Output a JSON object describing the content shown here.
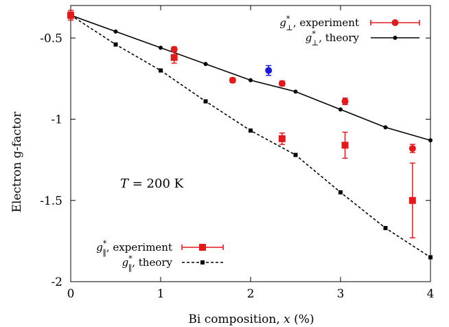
{
  "chart_data": {
    "type": "scatter",
    "xlabel": "Bi composition, x (%)",
    "ylabel": "Electron g-factor",
    "xlim": [
      0,
      4
    ],
    "ylim": [
      -2,
      -0.3
    ],
    "x_ticks": [
      0,
      1,
      2,
      3,
      4
    ],
    "x_tick_labels": [
      "0",
      "1",
      "2",
      "3",
      "4"
    ],
    "y_ticks": [
      -0.5,
      -1,
      -1.5,
      -2
    ],
    "y_tick_labels": [
      "-0.5",
      "-1",
      "-1.5",
      "-2"
    ],
    "annotation": "T = 200 K",
    "series": [
      {
        "name": "g⊥*, experiment",
        "kind": "points",
        "marker": "circle",
        "color": "#e31a1c",
        "points": [
          {
            "x": 0,
            "y": -0.36,
            "err": 0.03
          },
          {
            "x": 1.15,
            "y": -0.57,
            "err": 0.015
          },
          {
            "x": 1.8,
            "y": -0.76,
            "err": 0.015
          },
          {
            "x": 2.35,
            "y": -0.78,
            "err": 0.015
          },
          {
            "x": 3.05,
            "y": -0.89,
            "err": 0.02
          },
          {
            "x": 3.8,
            "y": -1.18,
            "err": 0.025
          }
        ]
      },
      {
        "name": "g⊥*, theory",
        "kind": "line",
        "marker": "circle",
        "color": "#000000",
        "dash": false,
        "points": [
          {
            "x": 0,
            "y": -0.36
          },
          {
            "x": 0.5,
            "y": -0.46
          },
          {
            "x": 1,
            "y": -0.56
          },
          {
            "x": 1.5,
            "y": -0.66
          },
          {
            "x": 2,
            "y": -0.76
          },
          {
            "x": 2.5,
            "y": -0.83
          },
          {
            "x": 3,
            "y": -0.94
          },
          {
            "x": 3.5,
            "y": -1.05
          },
          {
            "x": 4,
            "y": -1.13
          }
        ]
      },
      {
        "name": "",
        "kind": "points",
        "marker": "circle",
        "color": "#1a1adc",
        "points": [
          {
            "x": 2.2,
            "y": -0.7,
            "err": 0.03
          }
        ]
      },
      {
        "name": "g‖*, experiment",
        "kind": "points",
        "marker": "square",
        "color": "#e31a1c",
        "points": [
          {
            "x": 0,
            "y": -0.36,
            "err": 0.02
          },
          {
            "x": 1.15,
            "y": -0.62,
            "err": 0.035
          },
          {
            "x": 2.35,
            "y": -1.12,
            "err": 0.035
          },
          {
            "x": 3.05,
            "y": -1.16,
            "err": 0.08
          },
          {
            "x": 3.8,
            "y": -1.5,
            "err": 0.23
          }
        ]
      },
      {
        "name": "g‖*, theory",
        "kind": "line",
        "marker": "square",
        "color": "#000000",
        "dash": true,
        "points": [
          {
            "x": 0,
            "y": -0.36
          },
          {
            "x": 0.5,
            "y": -0.54
          },
          {
            "x": 1,
            "y": -0.7
          },
          {
            "x": 1.5,
            "y": -0.89
          },
          {
            "x": 2,
            "y": -1.07
          },
          {
            "x": 2.5,
            "y": -1.22
          },
          {
            "x": 3,
            "y": -1.45
          },
          {
            "x": 3.5,
            "y": -1.67
          },
          {
            "x": 4,
            "y": -1.85
          }
        ]
      }
    ],
    "legends": [
      {
        "placement": "top-right",
        "entries": [
          {
            "main": "g",
            "sup": "*",
            "sub": "⊥",
            "rest": ", experiment",
            "series": 0
          },
          {
            "main": "g",
            "sup": "*",
            "sub": "⊥",
            "rest": ", theory",
            "series": 1
          }
        ]
      },
      {
        "placement": "bottom-left",
        "entries": [
          {
            "main": "g",
            "sup": "*",
            "sub": "‖",
            "rest": ", experiment",
            "series": 3
          },
          {
            "main": "g",
            "sup": "*",
            "sub": "‖",
            "rest": ", theory",
            "series": 4
          }
        ]
      }
    ]
  }
}
